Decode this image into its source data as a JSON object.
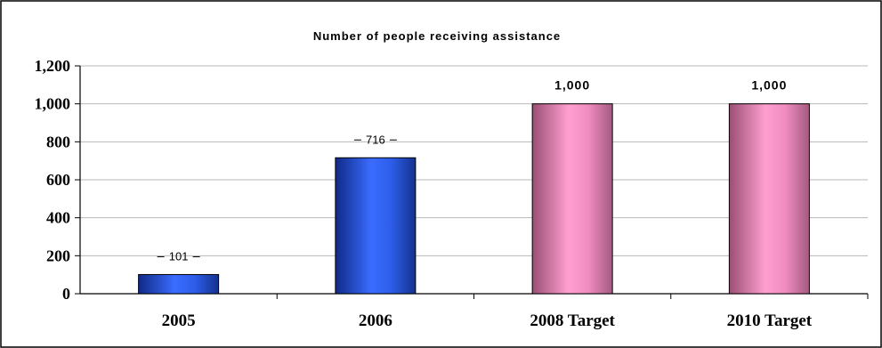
{
  "chart_data": {
    "type": "bar",
    "title": "Number of people receiving assistance",
    "categories": [
      "2005",
      "2006",
      "2008 Target",
      "2010 Target"
    ],
    "values": [
      101,
      716,
      1000,
      1000
    ],
    "data_labels": [
      "101",
      "716",
      "1,000",
      "1,000"
    ],
    "y_ticks": [
      0,
      200,
      400,
      600,
      800,
      1000,
      1200
    ],
    "y_tick_labels": [
      "0",
      "200",
      "400",
      "600",
      "800",
      "1,000",
      "1,200"
    ],
    "ylim": [
      0,
      1200
    ],
    "grid": true,
    "legend": "none",
    "bar_colors": [
      "#2f5fe0",
      "#2f5fe0",
      "#e889b8",
      "#e889b8"
    ],
    "xlabel": "",
    "ylabel": ""
  }
}
